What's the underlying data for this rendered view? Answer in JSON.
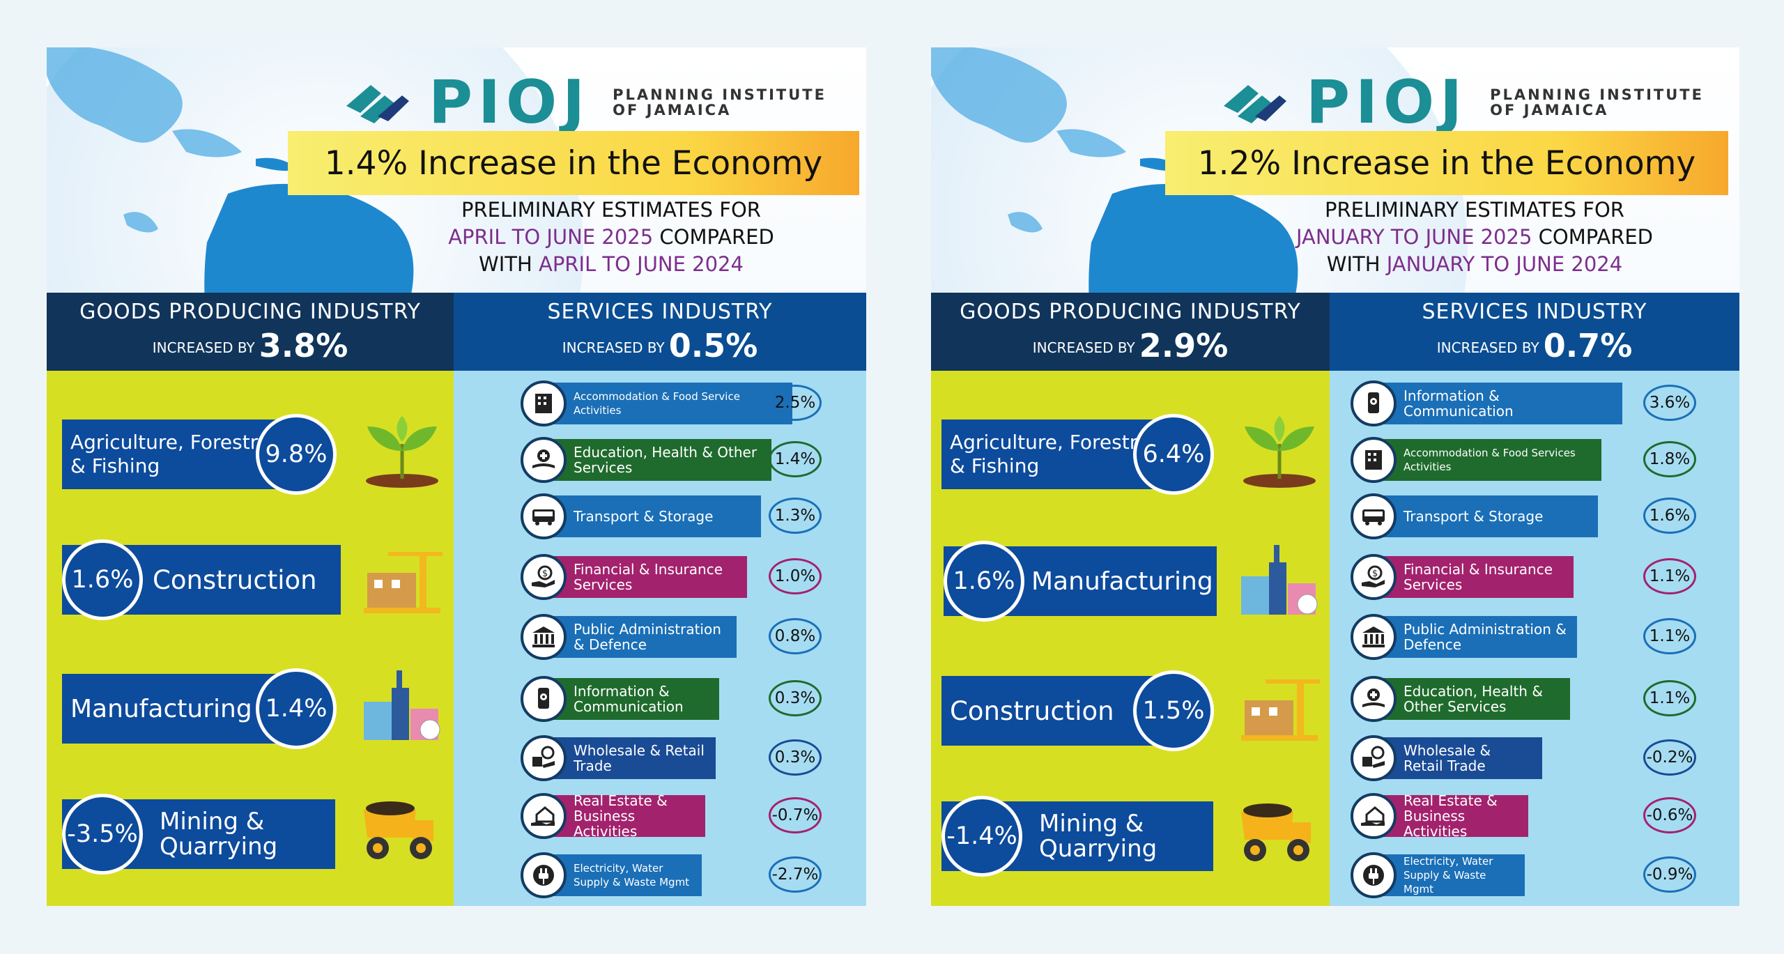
{
  "org": {
    "logo": "PIOJ",
    "name_line1": "PLANNING INSTITUTE",
    "name_line2": "OF JAMAICA"
  },
  "panels": [
    {
      "headline": "1.4% Increase in the Economy",
      "prelim": {
        "line1": "PRELIMINARY ESTIMATES FOR",
        "period": "APRIL TO JUNE 2025",
        "compared": " COMPARED",
        "with": "WITH ",
        "base": "APRIL TO JUNE 2024"
      },
      "goods": {
        "title": "GOODS PRODUCING INDUSTRY",
        "sub": "INCREASED BY",
        "value": "3.8%",
        "items": [
          {
            "label": "Agriculture, Forestry & Fishing",
            "value": "9.8%",
            "icon": "plant-icon"
          },
          {
            "label": "Construction",
            "value": "1.6%",
            "icon": "construction-icon"
          },
          {
            "label": "Manufacturing",
            "value": "1.4%",
            "icon": "factory-icon"
          },
          {
            "label": "Mining & Quarrying",
            "value": "-3.5%",
            "icon": "dump-truck-icon"
          }
        ]
      },
      "services": {
        "title": "SERVICES INDUSTRY",
        "sub": "INCREASED BY",
        "value": "0.5%",
        "items": [
          {
            "label": "Accommodation & Food Service Activities",
            "value": "2.5%",
            "color": "#1a6fb7",
            "icon": "building-icon"
          },
          {
            "label": "Education, Health & Other Services",
            "value": "1.4%",
            "color": "#1f6b2d",
            "icon": "book-health-icon"
          },
          {
            "label": "Transport & Storage",
            "value": "1.3%",
            "color": "#1a6fb7",
            "icon": "bus-icon"
          },
          {
            "label": "Financial & Insurance Services",
            "value": "1.0%",
            "color": "#a3226d",
            "icon": "money-hand-icon"
          },
          {
            "label": "Public Administration & Defence",
            "value": "0.8%",
            "color": "#1a6fb7",
            "icon": "government-building-icon"
          },
          {
            "label": "Information & Communication",
            "value": "0.3%",
            "color": "#1f6b2d",
            "icon": "phone-icon"
          },
          {
            "label": "Wholesale & Retail Trade",
            "value": "0.3%",
            "color": "#1a4b95",
            "icon": "trade-icon"
          },
          {
            "label": "Real Estate & Business Activities",
            "value": "-0.7%",
            "color": "#a3226d",
            "icon": "house-hand-icon"
          },
          {
            "label": "Electricity, Water Supply & Waste Mgmt",
            "value": "-2.7%",
            "color": "#1a6fb7",
            "icon": "plug-icon"
          }
        ]
      }
    },
    {
      "headline": "1.2% Increase in the Economy",
      "prelim": {
        "line1": "PRELIMINARY ESTIMATES FOR",
        "period": "JANUARY TO JUNE 2025",
        "compared": " COMPARED",
        "with": "WITH ",
        "base": "JANUARY TO JUNE 2024"
      },
      "goods": {
        "title": "GOODS PRODUCING INDUSTRY",
        "sub": "INCREASED BY",
        "value": "2.9%",
        "items": [
          {
            "label": "Agriculture, Forestry & Fishing",
            "value": "6.4%",
            "icon": "plant-icon"
          },
          {
            "label": "Manufacturing",
            "value": "1.6%",
            "icon": "factory-icon"
          },
          {
            "label": "Construction",
            "value": "1.5%",
            "icon": "construction-icon"
          },
          {
            "label": "Mining & Quarrying",
            "value": "-1.4%",
            "icon": "dump-truck-icon"
          }
        ]
      },
      "services": {
        "title": "SERVICES INDUSTRY",
        "sub": "INCREASED BY",
        "value": "0.7%",
        "items": [
          {
            "label": "Information & Communication",
            "value": "3.6%",
            "color": "#1a6fb7",
            "icon": "phone-icon"
          },
          {
            "label": "Accommodation & Food Services Activities",
            "value": "1.8%",
            "color": "#1f6b2d",
            "icon": "building-icon"
          },
          {
            "label": "Transport & Storage",
            "value": "1.6%",
            "color": "#1a6fb7",
            "icon": "bus-icon"
          },
          {
            "label": "Financial & Insurance Services",
            "value": "1.1%",
            "color": "#a3226d",
            "icon": "money-hand-icon"
          },
          {
            "label": "Public Administration & Defence",
            "value": "1.1%",
            "color": "#1a6fb7",
            "icon": "government-building-icon"
          },
          {
            "label": "Education, Health & Other Services",
            "value": "1.1%",
            "color": "#1f6b2d",
            "icon": "book-health-icon"
          },
          {
            "label": "Wholesale & Retail Trade",
            "value": "-0.2%",
            "color": "#1a4b95",
            "icon": "trade-icon"
          },
          {
            "label": "Real Estate & Business Activities",
            "value": "-0.6%",
            "color": "#a3226d",
            "icon": "house-hand-icon"
          },
          {
            "label": "Electricity, Water Supply & Waste Mgmt",
            "value": "-0.9%",
            "color": "#1a6fb7",
            "icon": "plug-icon"
          }
        ]
      }
    }
  ]
}
